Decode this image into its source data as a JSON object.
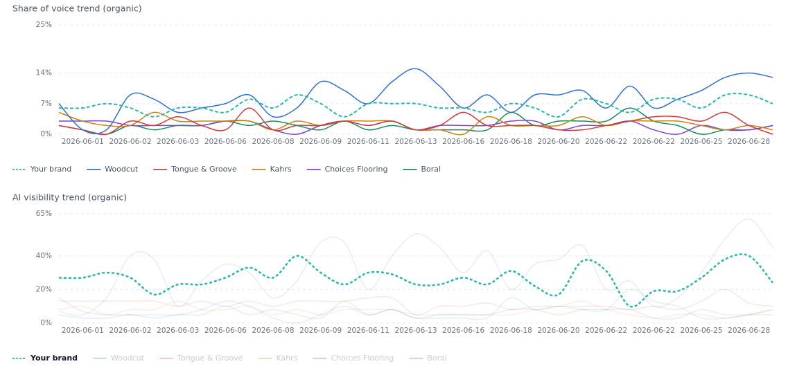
{
  "chart_data": [
    {
      "type": "line",
      "title": "Share of voice trend (organic)",
      "categories": [
        null,
        "2026-06-01",
        null,
        "2026-06-02",
        null,
        "2026-06-03",
        null,
        "2026-06-06",
        null,
        "2026-06-08",
        null,
        "2026-06-09",
        null,
        "2026-06-11",
        null,
        "2026-06-13",
        null,
        "2026-06-16",
        null,
        "2026-06-18",
        null,
        "2026-06-20",
        null,
        "2026-06-22",
        null,
        "2026-06-22",
        null,
        "2026-06-25",
        null,
        "2026-06-28",
        null
      ],
      "ylim": [
        0,
        25
      ],
      "yticks": [
        {
          "value": 0,
          "label": "0%"
        },
        {
          "value": 7,
          "label": "7%"
        },
        {
          "value": 14,
          "label": "14%"
        },
        {
          "value": 25,
          "label": "25%"
        }
      ],
      "grid": true,
      "legend": "bottom-left",
      "series": [
        {
          "name": "Your brand",
          "color": "#2bb5a8",
          "dashed": true,
          "values": [
            6,
            6,
            7,
            6,
            4,
            6,
            6,
            5,
            8,
            6,
            9,
            7,
            4,
            7,
            7,
            7,
            6,
            6,
            5,
            7,
            6,
            4,
            8,
            7,
            5,
            8,
            8,
            6,
            9,
            9,
            7
          ]
        },
        {
          "name": "Woodcut",
          "color": "#2f6fd1",
          "values": [
            7,
            1,
            1,
            9,
            8,
            5,
            6,
            7,
            9,
            4,
            6,
            12,
            10,
            7,
            12,
            15,
            11,
            6,
            9,
            5,
            9,
            9,
            10,
            6,
            11,
            6,
            8,
            10,
            13,
            14,
            13
          ]
        },
        {
          "name": "Tongue & Groove",
          "color": "#cf3b3b",
          "values": [
            2,
            1,
            0,
            3,
            2,
            4,
            2,
            1,
            6,
            1,
            2,
            2,
            3,
            2,
            3,
            1,
            2,
            5,
            2,
            2,
            2,
            1,
            1,
            2,
            3,
            4,
            4,
            3,
            5,
            2,
            0
          ]
        },
        {
          "name": "Kahrs",
          "color": "#c98316",
          "values": [
            5,
            3,
            2,
            2,
            5,
            3,
            3,
            3,
            3,
            1,
            3,
            2,
            3,
            3,
            3,
            1,
            1,
            0,
            4,
            2,
            2,
            2,
            4,
            2,
            3,
            3,
            3,
            2,
            1,
            2,
            1
          ]
        },
        {
          "name": "Choices Flooring",
          "color": "#7a44d1",
          "values": [
            3,
            3,
            3,
            2,
            2,
            2,
            2,
            3,
            3,
            1,
            0,
            2,
            3,
            2,
            3,
            1,
            2,
            2,
            2,
            3,
            3,
            1,
            2,
            2,
            3,
            1,
            0,
            2,
            1,
            1,
            2
          ]
        },
        {
          "name": "Boral",
          "color": "#178a5c",
          "values": [
            2,
            1,
            0,
            2,
            1,
            2,
            2,
            3,
            2,
            3,
            2,
            1,
            3,
            1,
            2,
            1,
            1,
            1,
            1,
            5,
            2,
            3,
            3,
            3,
            6,
            3,
            2,
            0,
            1,
            1,
            2
          ]
        }
      ]
    },
    {
      "type": "line",
      "title": "AI visibility trend (organic)",
      "categories": [
        null,
        "2026-06-01",
        null,
        "2026-06-02",
        null,
        "2026-06-03",
        null,
        "2026-06-06",
        null,
        "2026-06-08",
        null,
        "2026-06-09",
        null,
        "2026-06-11",
        null,
        "2026-06-13",
        null,
        "2026-06-16",
        null,
        "2026-06-18",
        null,
        "2026-06-20",
        null,
        "2026-06-22",
        null,
        "2026-06-22",
        null,
        "2026-06-25",
        null,
        "2026-06-28",
        null
      ],
      "ylim": [
        0,
        65
      ],
      "yticks": [
        {
          "value": 0,
          "label": "0%"
        },
        {
          "value": 20,
          "label": "20%"
        },
        {
          "value": 40,
          "label": "40%"
        },
        {
          "value": 65,
          "label": "65%"
        }
      ],
      "grid": true,
      "legend": "bottom-left",
      "focus_series": 0,
      "series": [
        {
          "name": "Your brand",
          "color": "#2bb5a8",
          "dashed": true,
          "values": [
            27,
            27,
            30,
            27,
            17,
            23,
            23,
            27,
            33,
            27,
            40,
            30,
            23,
            30,
            29,
            23,
            23,
            27,
            23,
            31,
            22,
            17,
            37,
            31,
            10,
            19,
            19,
            27,
            38,
            40,
            24
          ]
        },
        {
          "name": "Woodcut",
          "color": "#2f6fd1",
          "values": [
            7,
            5,
            15,
            40,
            38,
            10,
            25,
            35,
            30,
            15,
            25,
            48,
            48,
            20,
            40,
            53,
            45,
            30,
            43,
            20,
            35,
            38,
            46,
            20,
            25,
            10,
            15,
            30,
            50,
            62,
            45
          ]
        },
        {
          "name": "Tongue & Groove",
          "color": "#cf3b3b",
          "values": [
            13,
            13,
            13,
            13,
            13,
            10,
            13,
            10,
            13,
            10,
            13,
            13,
            13,
            15,
            15,
            5,
            10,
            10,
            12,
            8,
            10,
            10,
            10,
            10,
            8,
            10,
            8,
            13,
            20,
            12,
            10
          ]
        },
        {
          "name": "Kahrs",
          "color": "#c98316",
          "values": [
            8,
            10,
            5,
            8,
            8,
            13,
            8,
            8,
            10,
            5,
            8,
            5,
            8,
            8,
            8,
            5,
            5,
            5,
            5,
            5,
            8,
            10,
            13,
            8,
            5,
            3,
            5,
            5,
            3,
            5,
            8
          ]
        },
        {
          "name": "Choices Flooring",
          "color": "#7a44d1",
          "values": [
            15,
            7,
            5,
            5,
            5,
            5,
            8,
            13,
            10,
            3,
            0,
            5,
            10,
            5,
            8,
            3,
            5,
            5,
            5,
            8,
            8,
            5,
            8,
            8,
            8,
            3,
            3,
            8,
            5,
            5,
            5
          ]
        },
        {
          "name": "Boral",
          "color": "#178a5c",
          "values": [
            5,
            3,
            3,
            5,
            3,
            5,
            5,
            10,
            5,
            8,
            5,
            3,
            13,
            5,
            8,
            3,
            3,
            3,
            3,
            15,
            8,
            10,
            8,
            8,
            20,
            13,
            10,
            3,
            3,
            5,
            8
          ]
        }
      ]
    }
  ]
}
